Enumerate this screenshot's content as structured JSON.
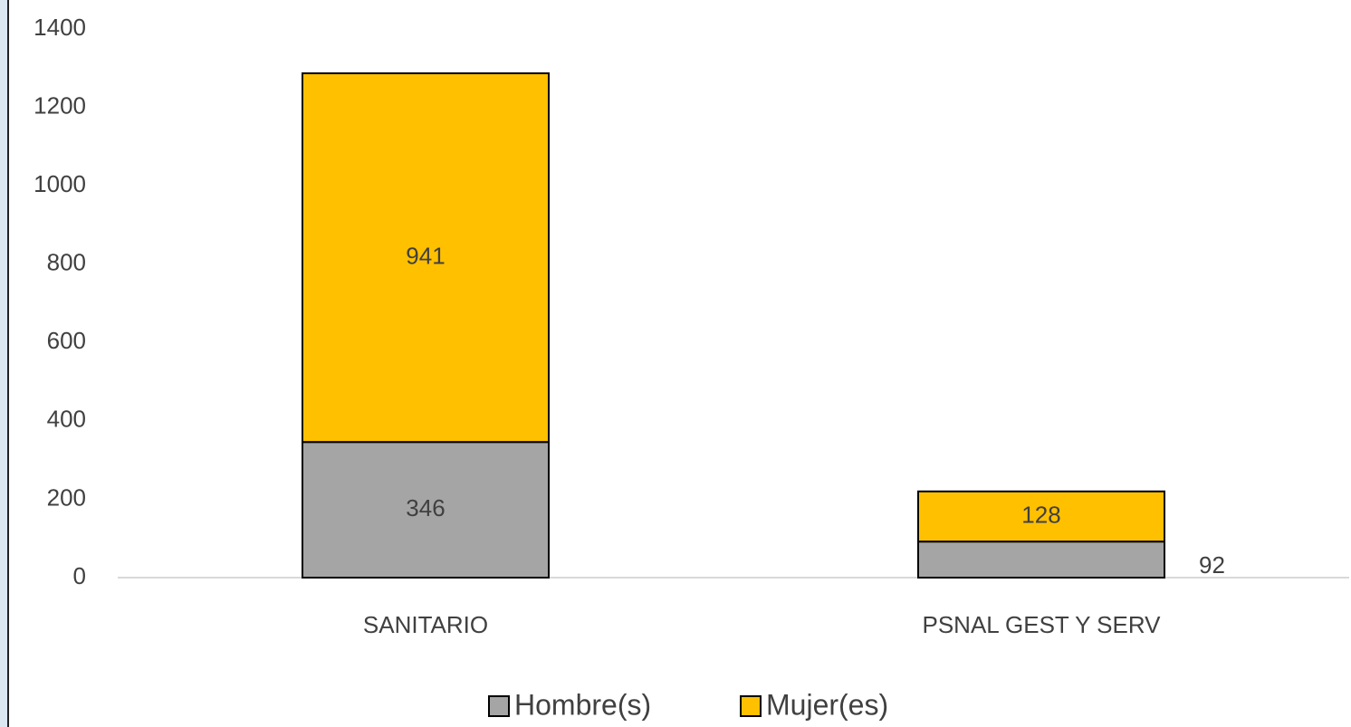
{
  "chart_data": {
    "type": "stacked_bar",
    "categories": [
      "SANITARIO",
      "PSNAL GEST Y SERV"
    ],
    "series": [
      {
        "name": "Hombre(s)",
        "color": "#a5a5a5",
        "values": [
          346,
          92
        ]
      },
      {
        "name": "Mujer(es)",
        "color": "#ffc000",
        "values": [
          941,
          128
        ]
      }
    ],
    "ylim": [
      0,
      1400
    ],
    "yticks": [
      0,
      200,
      400,
      600,
      800,
      1000,
      1200,
      1400
    ],
    "grid": false,
    "legend": "bottom"
  }
}
